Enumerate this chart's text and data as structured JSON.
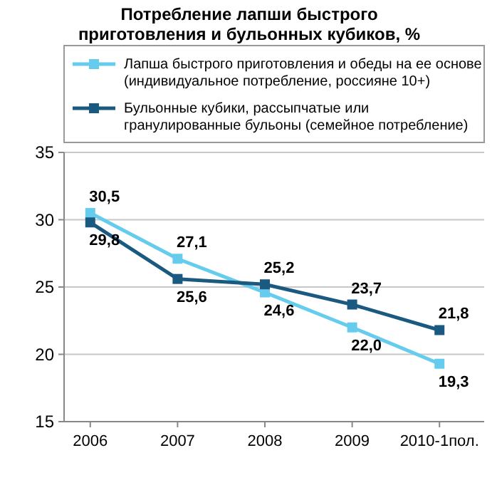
{
  "chart_data": {
    "type": "line",
    "title": "Потребление лапши быстрого приготовления и бульонных кубиков, %",
    "categories": [
      "2006",
      "2007",
      "2008",
      "2009",
      "2010-1пол."
    ],
    "series": [
      {
        "name": "Лапша быстрого приготовления и обеды на ее основе (индивидуальное потребление, россияне 10+)",
        "color": "#66ccee",
        "values": [
          30.5,
          27.1,
          24.6,
          22.0,
          19.3
        ],
        "value_labels": [
          "30,5",
          "27,1",
          "24,6",
          "22,0",
          "19,3"
        ]
      },
      {
        "name": "Бульонные кубики, рассыпчатые или гранулированные бульоны (семейное потребление)",
        "color": "#1a5a80",
        "values": [
          29.8,
          25.6,
          25.2,
          23.7,
          21.8
        ],
        "value_labels": [
          "29,8",
          "25,6",
          "25,2",
          "23,7",
          "21,8"
        ]
      }
    ],
    "ylim": [
      15,
      35
    ],
    "yticks": [
      15,
      20,
      25,
      30,
      35
    ],
    "grid": "y",
    "legend": "top",
    "marker": "square",
    "line_style": "solid"
  }
}
